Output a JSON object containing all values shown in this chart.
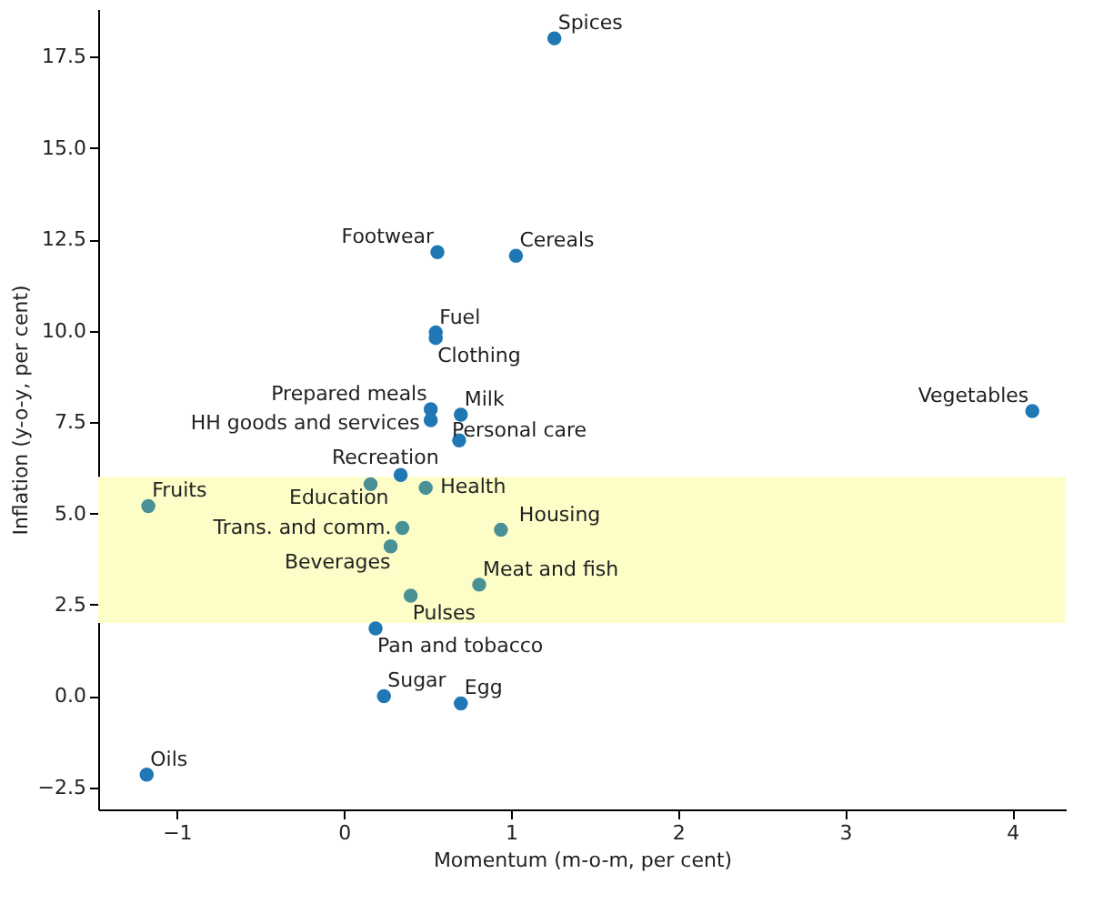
{
  "chart_data": {
    "type": "scatter",
    "xlabel": "Momentum (m-o-m, per cent)",
    "ylabel": "Inflation (y-o-y, per cent)",
    "x": [
      1.26,
      0.56,
      1.03,
      0.55,
      0.55,
      0.52,
      0.52,
      0.7,
      0.69,
      4.12,
      0.34,
      0.16,
      0.49,
      -1.17,
      0.35,
      0.94,
      0.28,
      0.81,
      0.4,
      0.19,
      0.24,
      0.7,
      -1.18
    ],
    "values": [
      18.0,
      12.15,
      12.05,
      9.95,
      9.8,
      7.85,
      7.55,
      7.7,
      7.0,
      7.8,
      6.05,
      5.8,
      5.7,
      5.2,
      4.6,
      4.55,
      4.1,
      3.05,
      2.75,
      1.85,
      0.0,
      -0.2,
      -2.15
    ],
    "value_labels": [
      "Spices",
      "Footwear",
      "Cereals",
      "Fuel",
      "Clothing",
      "Prepared meals",
      "HH goods and services",
      "Milk",
      "Personal care",
      "Vegetables",
      "Recreation",
      "Education",
      "Health",
      "Fruits",
      "Trans. and comm.",
      "Housing",
      "Beverages",
      "Meat and fish",
      "Pulses",
      "Pan and tobacco",
      "Sugar",
      "Egg",
      "Oils"
    ],
    "colors": [
      "#1f77b4",
      "#1f77b4",
      "#1f77b4",
      "#1f77b4",
      "#1f77b4",
      "#1f77b4",
      "#1f77b4",
      "#1f77b4",
      "#1f77b4",
      "#1f77b4",
      "#1f77b4",
      "#4a9196",
      "#4a9196",
      "#4a9196",
      "#4a9196",
      "#4a9196",
      "#4a9196",
      "#4a9196",
      "#4a9196",
      "#1f77b4",
      "#1f77b4",
      "#1f77b4",
      "#1f77b4"
    ],
    "xlim": [
      -1.47,
      4.32
    ],
    "ylim": [
      -3.1,
      18.8
    ],
    "xticks": [
      {
        "value": -1,
        "label": "−1"
      },
      {
        "value": 0,
        "label": "0"
      },
      {
        "value": 1,
        "label": "1"
      },
      {
        "value": 2,
        "label": "2"
      },
      {
        "value": 3,
        "label": "3"
      },
      {
        "value": 4,
        "label": "4"
      }
    ],
    "yticks": [
      {
        "value": -2.5,
        "label": "−2.5"
      },
      {
        "value": 0,
        "label": "0.0"
      },
      2.5,
      {
        "value": 5,
        "label": "5.0"
      },
      7.5,
      {
        "value": 10,
        "label": "10.0"
      },
      12.5,
      {
        "value": 15,
        "label": "15.0"
      },
      17.5
    ],
    "bands": [
      {
        "axis": "y",
        "from": 2,
        "to": 6,
        "color": "#fdfdc8"
      }
    ],
    "marker": "circle",
    "grid": false
  }
}
